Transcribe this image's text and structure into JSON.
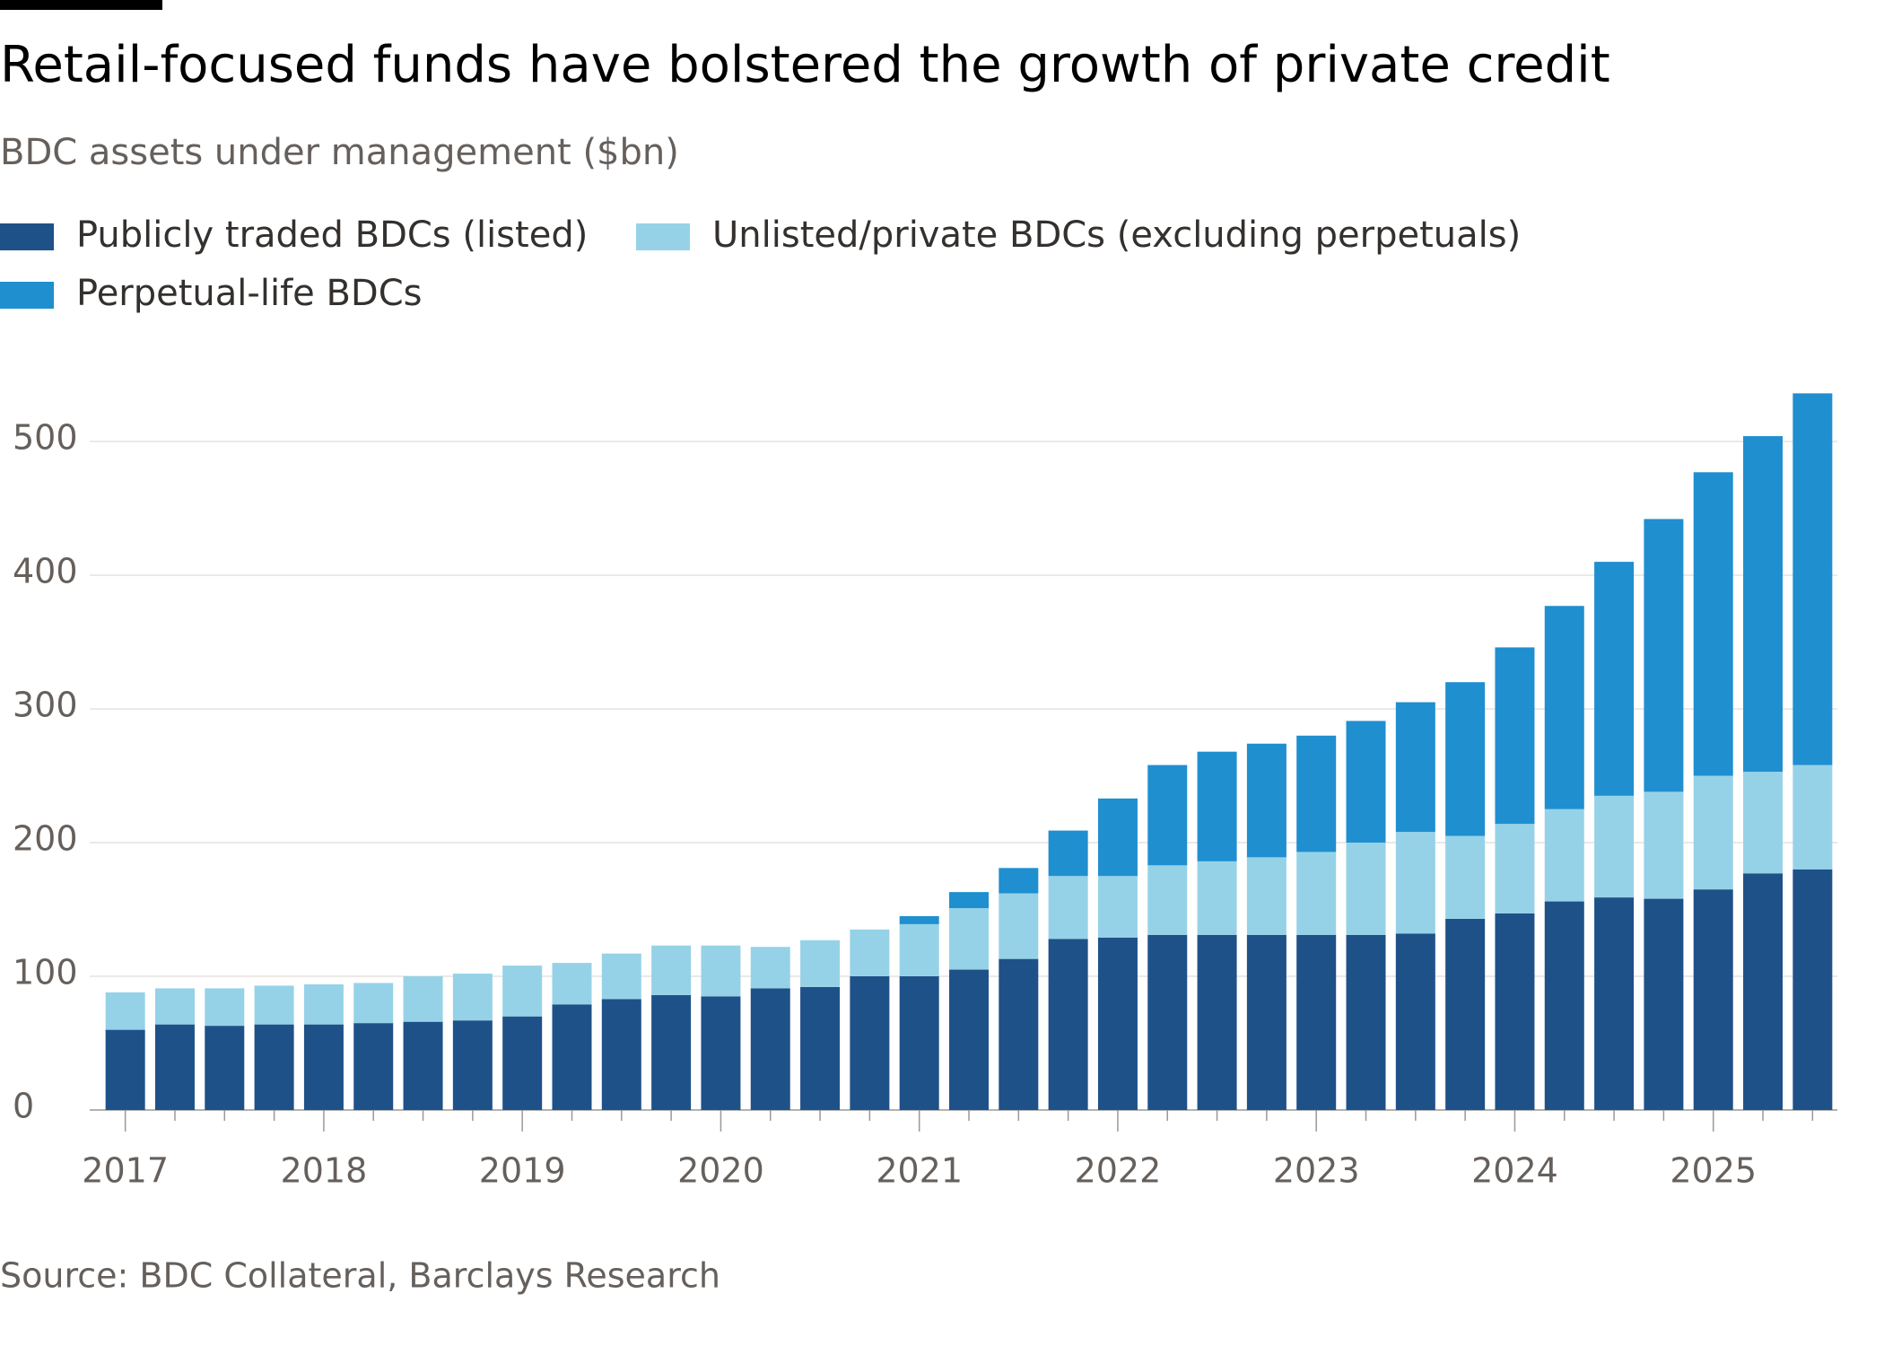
{
  "chart_data": {
    "type": "stacked-bar",
    "title": "Retail-focused funds have bolstered the growth of private credit",
    "subtitle": "BDC assets under management ($bn)",
    "source": "Source: BDC Collateral, Barclays Research",
    "categories": [
      "2017",
      null,
      null,
      null,
      "2018",
      null,
      null,
      null,
      "2019",
      null,
      null,
      null,
      "2020",
      null,
      null,
      null,
      "2021",
      null,
      null,
      null,
      "2022",
      null,
      null,
      null,
      "2023",
      null,
      null,
      null,
      "2024",
      null,
      null,
      null,
      "2025",
      null,
      null
    ],
    "series": [
      {
        "name": "Publicly traded BDCs (listed)",
        "color": "#1f5189",
        "values": [
          60,
          64,
          63,
          64,
          64,
          65,
          66,
          67,
          70,
          79,
          83,
          86,
          85,
          91,
          92,
          100,
          100,
          105,
          113,
          128,
          129,
          131,
          131,
          131,
          131,
          131,
          132,
          143,
          147,
          156,
          159,
          158,
          165,
          177,
          180
        ]
      },
      {
        "name": "Unlisted/private BDCs (excluding perpetuals)",
        "color": "#96d2e7",
        "values": [
          28,
          27,
          28,
          29,
          30,
          30,
          34,
          35,
          38,
          31,
          34,
          37,
          38,
          31,
          35,
          35,
          39,
          46,
          49,
          47,
          46,
          52,
          55,
          58,
          62,
          69,
          76,
          62,
          67,
          69,
          76,
          80,
          85,
          76,
          78
        ]
      },
      {
        "name": "Perpetual-life BDCs",
        "color": "#1f8fd0",
        "values": [
          0,
          0,
          0,
          0,
          0,
          0,
          0,
          0,
          0,
          0,
          0,
          0,
          0,
          0,
          0,
          0,
          6,
          12,
          19,
          34,
          58,
          75,
          82,
          85,
          87,
          91,
          97,
          115,
          132,
          152,
          175,
          204,
          227,
          251,
          278
        ]
      }
    ],
    "ylim": [
      0,
      500
    ],
    "yticks": [
      0,
      100,
      200,
      300,
      400,
      500
    ],
    "grid": true
  }
}
